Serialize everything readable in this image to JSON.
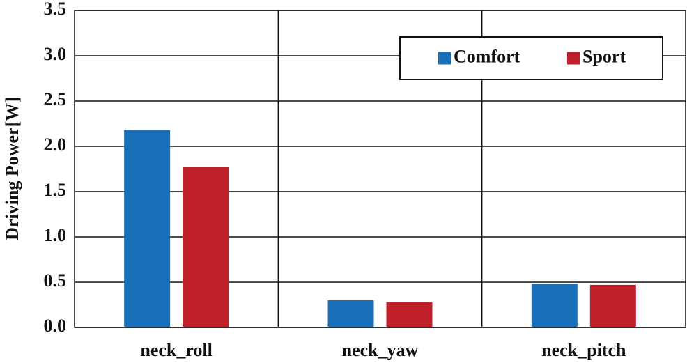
{
  "chart_data": {
    "type": "bar",
    "y_label": "Driving Power[W]",
    "categories": [
      "neck_roll",
      "neck_yaw",
      "neck_pitch"
    ],
    "series": [
      {
        "name": "Comfort",
        "color": "#1a70b8",
        "values": [
          2.18,
          0.3,
          0.48
        ]
      },
      {
        "name": "Sport",
        "color": "#c0202a",
        "values": [
          1.77,
          0.28,
          0.47
        ]
      }
    ],
    "ylim": [
      0,
      3.5
    ],
    "yticks": [
      {
        "value": 0,
        "label": "0.0"
      },
      0.5,
      {
        "value": 1,
        "label": "1.0"
      },
      1.5,
      {
        "value": 2,
        "label": "2.0"
      },
      2.5,
      {
        "value": 3,
        "label": "3.0"
      },
      3.5
    ],
    "grid": true,
    "legend": "upper right"
  }
}
